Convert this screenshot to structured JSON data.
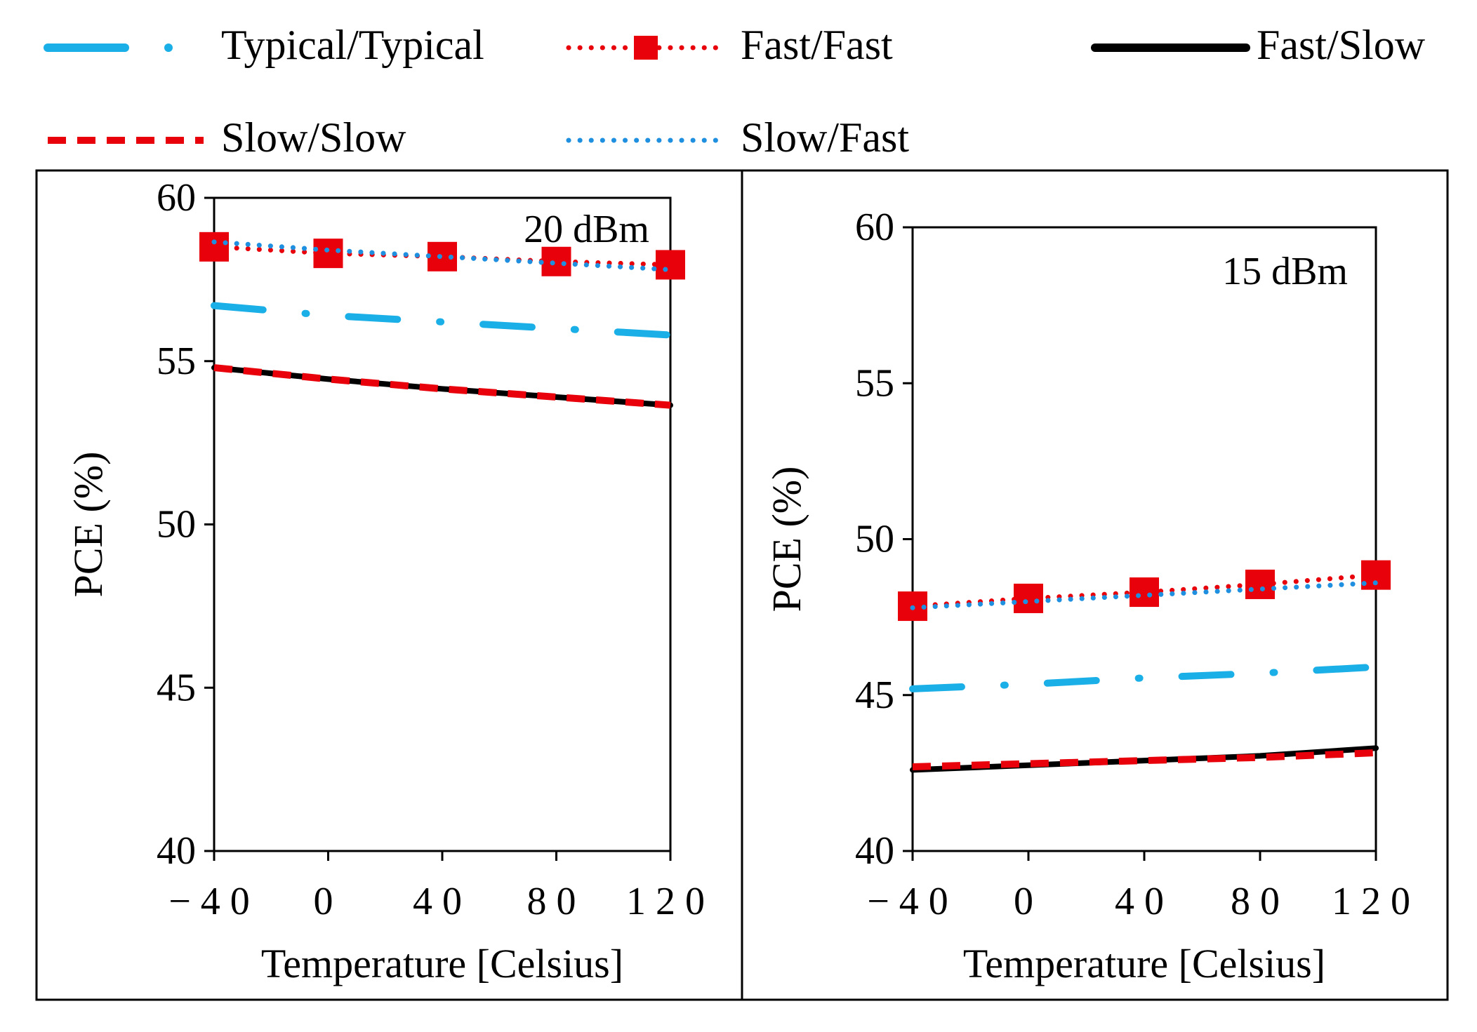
{
  "legend": {
    "items": [
      {
        "name": "Typical/Typical",
        "color": "#1aafe6",
        "style": "dashdot"
      },
      {
        "name": "Fast/Fast",
        "color": "#e8000b",
        "style": "dotted-square"
      },
      {
        "name": "Fast/Slow",
        "color": "#000000",
        "style": "solid"
      },
      {
        "name": "Slow/Slow",
        "color": "#e8000b",
        "style": "dashed"
      },
      {
        "name": "Slow/Fast",
        "color": "#1f8fe0",
        "style": "dotted"
      }
    ]
  },
  "chart_data": [
    {
      "type": "line",
      "annotation": "20 dBm",
      "xlabel": "Temperature [Celsius]",
      "ylabel": "PCE (%)",
      "x_ticks": [
        "−40",
        "0",
        "40",
        "80",
        "120"
      ],
      "y_ticks": [
        "40",
        "45",
        "50",
        "55",
        "60"
      ],
      "xlim": [
        -40,
        120
      ],
      "ylim": [
        40,
        60
      ],
      "x": [
        -40,
        0,
        40,
        80,
        120
      ],
      "series": [
        {
          "name": "Typical/Typical",
          "values": [
            56.7,
            56.4,
            56.2,
            56.0,
            55.8
          ]
        },
        {
          "name": "Fast/Fast",
          "values": [
            58.5,
            58.3,
            58.2,
            58.05,
            57.95
          ]
        },
        {
          "name": "Fast/Slow",
          "values": [
            54.8,
            54.45,
            54.15,
            53.9,
            53.65
          ]
        },
        {
          "name": "Slow/Slow",
          "values": [
            54.8,
            54.45,
            54.15,
            53.9,
            53.65
          ]
        },
        {
          "name": "Slow/Fast",
          "values": [
            58.65,
            58.4,
            58.2,
            58.0,
            57.8
          ]
        }
      ]
    },
    {
      "type": "line",
      "annotation": "15 dBm",
      "xlabel": "Temperature [Celsius]",
      "ylabel": "PCE (%)",
      "x_ticks": [
        "−40",
        "0",
        "40",
        "80",
        "120"
      ],
      "y_ticks": [
        "40",
        "45",
        "50",
        "55",
        "60"
      ],
      "xlim": [
        -40,
        120
      ],
      "ylim": [
        40,
        60
      ],
      "x": [
        -40,
        0,
        40,
        80,
        120
      ],
      "series": [
        {
          "name": "Typical/Typical",
          "values": [
            45.2,
            45.35,
            45.55,
            45.7,
            45.9
          ]
        },
        {
          "name": "Fast/Fast",
          "values": [
            47.85,
            48.1,
            48.3,
            48.55,
            48.85
          ]
        },
        {
          "name": "Fast/Slow",
          "values": [
            42.6,
            42.75,
            42.9,
            43.05,
            43.3
          ]
        },
        {
          "name": "Slow/Slow",
          "values": [
            42.7,
            42.8,
            42.9,
            43.0,
            43.15
          ]
        },
        {
          "name": "Slow/Fast",
          "values": [
            47.8,
            48.0,
            48.2,
            48.4,
            48.6
          ]
        }
      ]
    }
  ]
}
